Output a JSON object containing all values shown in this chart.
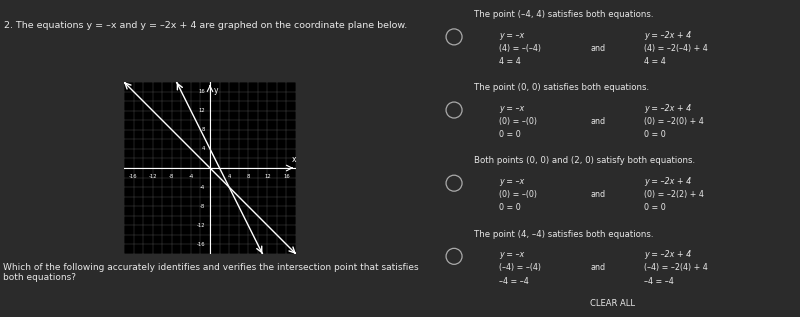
{
  "background_color": "#2b2b2b",
  "title_text": "2. The equations y = –x and y = –2x + 4 are graphed on the coordinate plane below.",
  "question_text": "Which of the following accurately identifies and verifies the intersection point that satisfies\nboth equations?",
  "graph": {
    "xlim": [
      -18,
      18
    ],
    "ylim": [
      -18,
      18
    ],
    "xticks": [
      -16,
      -12,
      -8,
      -4,
      4,
      8,
      12,
      16
    ],
    "yticks": [
      -16,
      -12,
      -8,
      -4,
      4,
      8,
      12,
      16
    ],
    "line1_slope": -1,
    "line1_intercept": 0,
    "line2_slope": -2,
    "line2_intercept": 4,
    "line_color": "#ffffff",
    "grid_color": "#555555",
    "axis_color": "#ffffff",
    "bg_color": "#000000"
  },
  "options": [
    {
      "header": "The point (–4, 4) satisfies both equations.",
      "col1_lines": [
        "y = –x",
        "(4) = –(–4)",
        "4 = 4"
      ],
      "col2_lines": [
        "y = –2x + 4",
        "(4) = –2(–4) + 4",
        "4 = 4"
      ],
      "connector": "and"
    },
    {
      "header": "The point (0, 0) satisfies both equations.",
      "col1_lines": [
        "y = –x",
        "(0) = –(0)",
        "0 = 0"
      ],
      "col2_lines": [
        "y = –2x + 4",
        "(0) = –2(0) + 4",
        "0 = 0"
      ],
      "connector": "and"
    },
    {
      "header": "Both points (0, 0) and (2, 0) satisfy both equations.",
      "col1_lines": [
        "y = –x",
        "(0) = –(0)",
        "0 = 0"
      ],
      "col2_lines": [
        "y = –2x + 4",
        "(0) = –2(2) + 4",
        "0 = 0"
      ],
      "connector": "and"
    },
    {
      "header": "The point (4, –4) satisfies both equations.",
      "col1_lines": [
        "y = –x",
        "(–4) = –(4)",
        "–4 = –4"
      ],
      "col2_lines": [
        "y = –2x + 4",
        "(–4) = –2(4) + 4",
        "–4 = –4"
      ],
      "connector": "and"
    }
  ],
  "option_box_color": "#222222",
  "option_border_color": "#555555",
  "option_text_color": "#e8e8e8",
  "math_box_color": "#000000",
  "radio_color": "#aaaaaa",
  "clear_all_text": "CLEAR ALL",
  "clear_all_bg": "#3a3a3a",
  "clear_all_border": "#666666"
}
